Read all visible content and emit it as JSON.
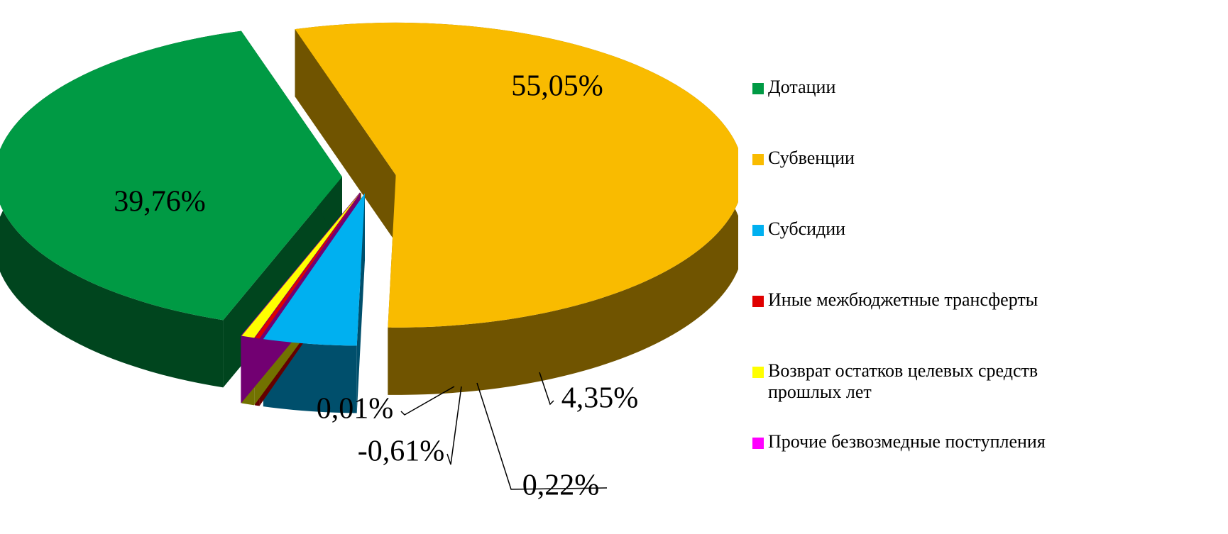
{
  "chart_data": {
    "type": "pie3d",
    "categories": [
      "Дотации",
      "Субвенции",
      "Субсидии",
      "Иные межбюджетные трансферты",
      "Возврат остатков целевых средств прошлых лет",
      "Прочие безвозмедные поступления"
    ],
    "values": [
      39.76,
      55.05,
      4.35,
      0.22,
      -0.61,
      0.01
    ],
    "value_labels": [
      "39,76%",
      "55,05%",
      "4,35%",
      "0,22%",
      "-0,61%",
      "0,01%"
    ],
    "colors": [
      "#009a44",
      "#f9bb00",
      "#00b0f0",
      "#e00000",
      "#ffff00",
      "#ff00ff"
    ],
    "legend": "right"
  }
}
